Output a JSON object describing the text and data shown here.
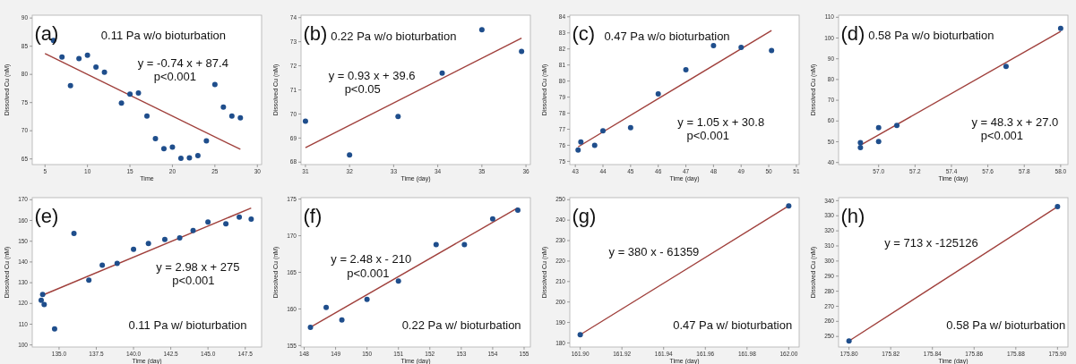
{
  "chart_data": [
    {
      "type": "scatter",
      "xlabel": "Time",
      "ylabel": "Dissolved Cu (nM)",
      "xlim": [
        3.5,
        30.5
      ],
      "xticks": [
        5,
        10,
        15,
        20,
        25,
        30
      ],
      "ylim": [
        64,
        90.5
      ],
      "yticks": [
        65,
        70,
        75,
        80,
        85,
        90
      ],
      "annotations": [
        "(a)",
        "0.11 Pa w/o bioturbation",
        "y = -0.74 x + 87.4",
        "p<0.001"
      ],
      "series": [
        {
          "color": "#1f4e8c",
          "marker": "circle",
          "x": [
            6,
            7,
            8,
            9,
            10,
            11,
            12,
            14,
            15,
            16,
            17,
            18,
            19,
            20,
            21,
            22,
            23,
            24,
            25,
            26,
            27,
            28
          ],
          "values": [
            86,
            83.1,
            78,
            82.8,
            83.4,
            81.3,
            80.4,
            74.9,
            76.5,
            76.7,
            72.6,
            68.6,
            66.8,
            67.1,
            65.1,
            65.2,
            65.6,
            68.2,
            78.2,
            74.2,
            72.6,
            72.3
          ]
        },
        {
          "type": "line",
          "color": "#a0403c",
          "marker": "none",
          "x": [
            5,
            28
          ],
          "values": [
            83.7,
            66.7
          ]
        }
      ]
    },
    {
      "type": "scatter",
      "xlabel": "Time (day)",
      "ylabel": "Dissolved Cu (nM)",
      "xlim": [
        30.9,
        36.1
      ],
      "xticks": [
        31,
        32,
        33,
        34,
        35,
        36
      ],
      "ylim": [
        67.9,
        74.1
      ],
      "yticks": [
        68,
        69,
        70,
        71,
        72,
        73,
        74
      ],
      "annotations": [
        "(b)",
        "0.22 Pa w/o bioturbation",
        "y = 0.93 x + 39.6",
        "p<0.05"
      ],
      "series": [
        {
          "color": "#1f4e8c",
          "marker": "circle",
          "x": [
            31,
            32,
            33.1,
            34.1,
            35,
            35.9
          ],
          "values": [
            69.7,
            68.3,
            69.9,
            71.7,
            73.5,
            72.6
          ]
        },
        {
          "type": "line",
          "color": "#a0403c",
          "marker": "none",
          "x": [
            31,
            35.9
          ],
          "values": [
            68.6,
            73.15
          ]
        }
      ]
    },
    {
      "type": "scatter",
      "xlabel": "Time (day)",
      "ylabel": "Dissolved Cu (nM)",
      "xlim": [
        42.8,
        51.1
      ],
      "xticks": [
        43,
        44,
        45,
        46,
        47,
        48,
        49,
        50,
        51
      ],
      "ylim": [
        74.8,
        84.1
      ],
      "yticks": [
        75,
        76,
        77,
        78,
        79,
        80,
        81,
        82,
        83,
        84
      ],
      "annotations": [
        "(c)",
        "0.47 Pa w/o bioturbation",
        "y = 1.05 x + 30.8",
        "p<0.001"
      ],
      "series": [
        {
          "color": "#1f4e8c",
          "marker": "circle",
          "x": [
            43.1,
            43.2,
            43.7,
            44,
            45,
            46,
            47,
            48,
            49,
            50.1
          ],
          "values": [
            75.7,
            76.2,
            76,
            76.9,
            77.1,
            79.2,
            80.7,
            82.2,
            82.1,
            81.9
          ]
        },
        {
          "type": "line",
          "color": "#a0403c",
          "marker": "none",
          "x": [
            43.1,
            50.1
          ],
          "values": [
            75.9,
            83.15
          ]
        }
      ]
    },
    {
      "type": "scatter",
      "xlabel": "Time (day)",
      "ylabel": "Dissolved Cu (nM)",
      "xlim": [
        56.78,
        58.04
      ],
      "xticks": [
        {
          "value": 57,
          "label": "57.0"
        },
        57.2,
        57.4,
        57.6,
        57.8,
        {
          "value": 58,
          "label": "58.0"
        }
      ],
      "ylim": [
        39,
        111
      ],
      "yticks": [
        40,
        50,
        60,
        70,
        80,
        90,
        100,
        110
      ],
      "annotations": [
        "(d)",
        "0.58 Pa w/o bioturbation",
        "y = 48.3 x + 27.0",
        "p<0.001"
      ],
      "series": [
        {
          "color": "#1f4e8c",
          "marker": "circle",
          "x": [
            56.9,
            56.9,
            57,
            57,
            57.1,
            57.7,
            58
          ],
          "values": [
            49.6,
            47.2,
            56.8,
            50.1,
            57.9,
            86.3,
            104.6
          ]
        },
        {
          "type": "line",
          "color": "#a0403c",
          "marker": "none",
          "x": [
            56.9,
            58
          ],
          "values": [
            48.3,
            103.2
          ]
        }
      ]
    },
    {
      "type": "scatter",
      "xlabel": "Time (day)",
      "ylabel": "Dissolved Cu (nM)",
      "xlim": [
        133.2,
        148.6
      ],
      "xticks": [
        {
          "value": 135,
          "label": "135.0"
        },
        137.5,
        {
          "value": 140,
          "label": "140.0"
        },
        142.5,
        {
          "value": 145,
          "label": "145.0"
        },
        147.5
      ],
      "ylim": [
        99,
        171
      ],
      "yticks": [
        100,
        110,
        120,
        130,
        140,
        150,
        160,
        170
      ],
      "annotations": [
        "(e)",
        "y = 2.98 x + 275",
        "p<0.001",
        "0.11 Pa w/ bioturbation"
      ],
      "series": [
        {
          "color": "#1f4e8c",
          "marker": "circle",
          "x": [
            133.8,
            133.9,
            134,
            134.7,
            136,
            137,
            137.9,
            138.9,
            140,
            141,
            142.1,
            143.1,
            144,
            145,
            146.2,
            147.1,
            147.9
          ],
          "values": [
            121.5,
            124.3,
            119.5,
            107.7,
            153.8,
            131.2,
            138.5,
            139.3,
            146.1,
            148.9,
            150.8,
            151.6,
            155.2,
            159.2,
            158.4,
            161.6,
            160.6
          ]
        },
        {
          "type": "line",
          "color": "#a0403c",
          "marker": "none",
          "x": [
            133.9,
            147.9
          ],
          "values": [
            124,
            166
          ]
        }
      ]
    },
    {
      "type": "scatter",
      "xlabel": "Time (day)",
      "ylabel": "Dissolved Cu (nM)",
      "xlim": [
        147.9,
        155.2
      ],
      "xticks": [
        148,
        149,
        150,
        151,
        152,
        153,
        154,
        155
      ],
      "ylim": [
        154.8,
        175.2
      ],
      "yticks": [
        155,
        160,
        165,
        170,
        175
      ],
      "annotations": [
        "(f)",
        "y = 2.48 x - 210",
        "p<0.001",
        "0.22 Pa w/ bioturbation"
      ],
      "series": [
        {
          "color": "#1f4e8c",
          "marker": "circle",
          "x": [
            148.2,
            148.7,
            149.2,
            150,
            151,
            152.2,
            153.1,
            154,
            154.8
          ],
          "values": [
            157.5,
            160.2,
            158.5,
            161.3,
            163.8,
            168.8,
            168.8,
            172.3,
            173.5
          ]
        },
        {
          "type": "line",
          "color": "#a0403c",
          "marker": "none",
          "x": [
            148.2,
            154.8
          ],
          "values": [
            157.5,
            173.8
          ]
        }
      ]
    },
    {
      "type": "scatter",
      "xlabel": "Time (day)",
      "ylabel": "Dissolved Cu (nM)",
      "xlim": [
        161.895,
        162.005
      ],
      "xticks": [
        {
          "value": 161.9,
          "label": "161.90"
        },
        161.92,
        161.94,
        161.96,
        161.98,
        {
          "value": 162,
          "label": "162.00"
        }
      ],
      "ylim": [
        178,
        251
      ],
      "yticks": [
        180,
        190,
        200,
        210,
        220,
        230,
        240,
        250
      ],
      "annotations": [
        "(g)",
        "y = 380 x - 61359",
        "0.47 Pa w/ bioturbation"
      ],
      "series": [
        {
          "color": "#1f4e8c",
          "marker": "circle",
          "x": [
            161.9,
            162
          ],
          "values": [
            184,
            247
          ]
        },
        {
          "type": "line",
          "color": "#a0403c",
          "marker": "none",
          "x": [
            161.9,
            162
          ],
          "values": [
            184,
            247
          ]
        }
      ]
    },
    {
      "type": "scatter",
      "xlabel": "Time (day)",
      "ylabel": "Dissolved Cu (nM)",
      "xlim": [
        175.795,
        175.905
      ],
      "xticks": [
        {
          "value": 175.8,
          "label": "175.80"
        },
        175.82,
        175.84,
        175.86,
        175.88,
        {
          "value": 175.9,
          "label": "175.90"
        }
      ],
      "ylim": [
        243,
        342
      ],
      "yticks": [
        250,
        260,
        270,
        280,
        290,
        300,
        310,
        320,
        330,
        340
      ],
      "annotations": [
        "(h)",
        "y = 713 x -125126",
        "0.58 Pa w/ bioturbation"
      ],
      "series": [
        {
          "color": "#1f4e8c",
          "marker": "circle",
          "x": [
            175.8,
            175.9
          ],
          "values": [
            247,
            336
          ]
        },
        {
          "type": "line",
          "color": "#a0403c",
          "marker": "none",
          "x": [
            175.8,
            175.9
          ],
          "values": [
            247,
            336
          ]
        }
      ]
    }
  ]
}
